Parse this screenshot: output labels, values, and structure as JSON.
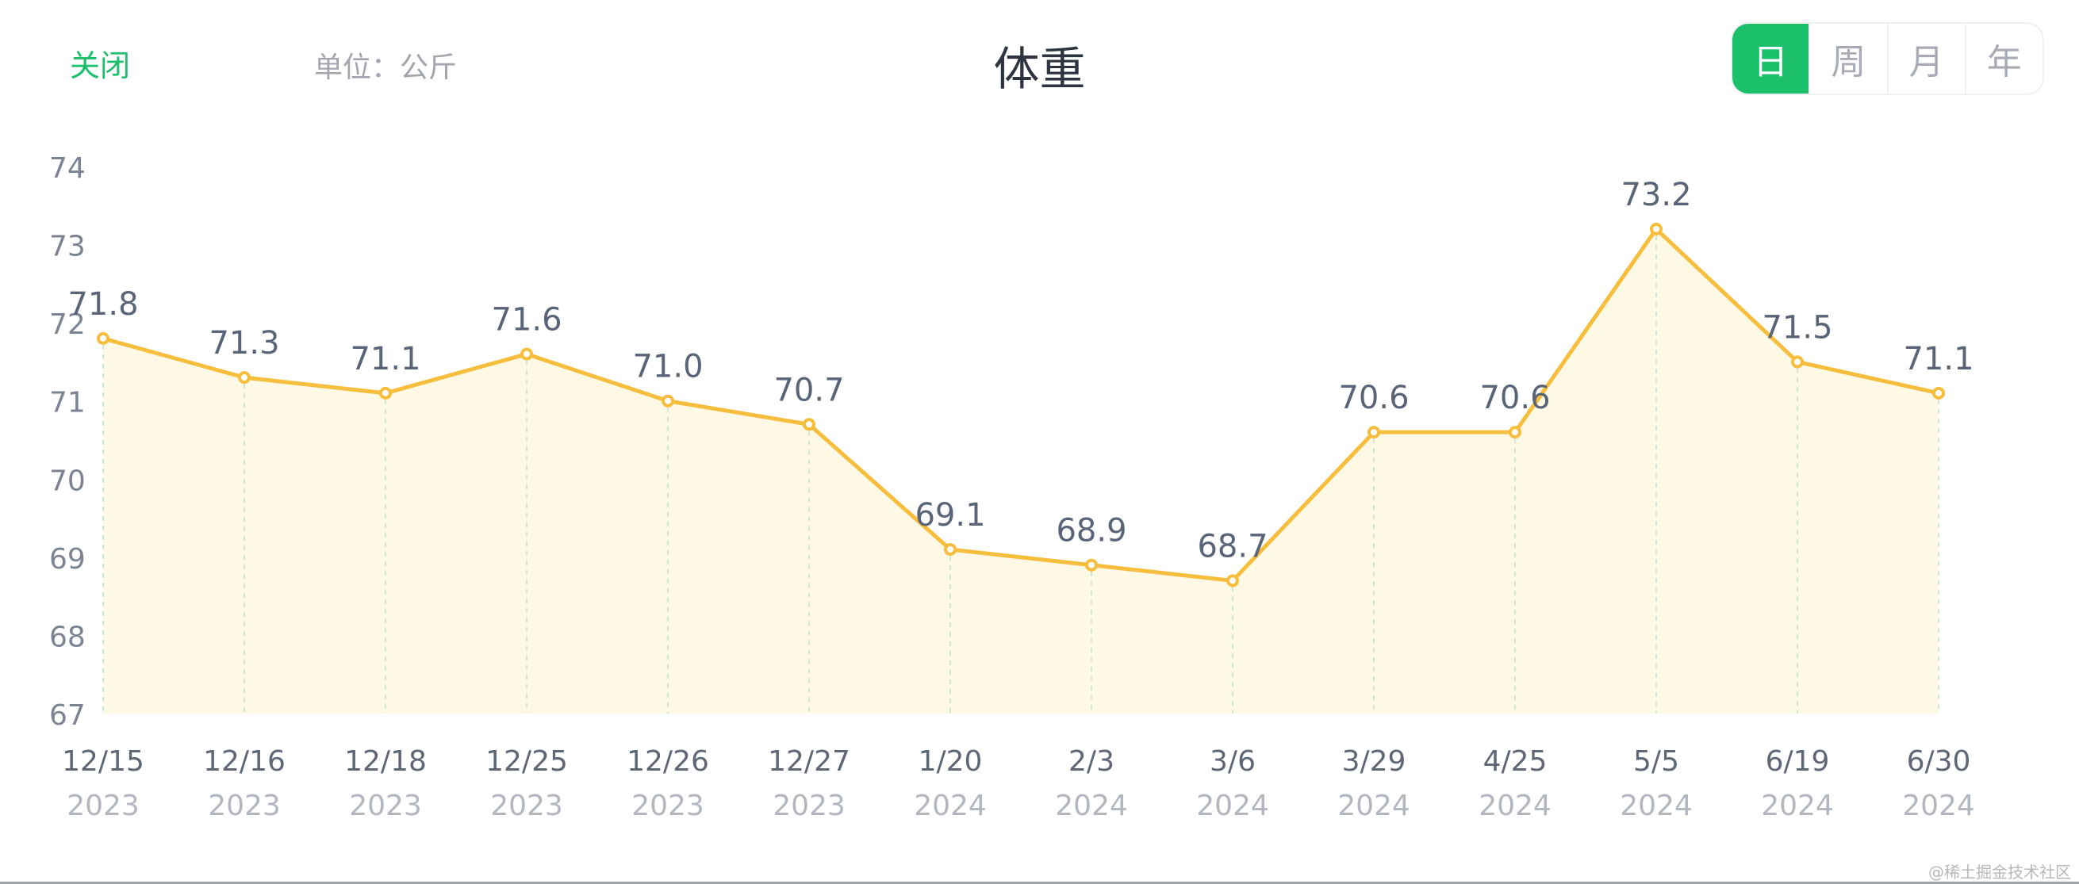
{
  "header": {
    "close_label": "关闭",
    "unit_label": "单位：公斤",
    "title": "体重"
  },
  "period_tabs": [
    {
      "label": "日",
      "active": true
    },
    {
      "label": "周",
      "active": false
    },
    {
      "label": "月",
      "active": false
    },
    {
      "label": "年",
      "active": false
    }
  ],
  "colors": {
    "accent_green": "#1cbf6a",
    "line": "#f7bd3c",
    "area_fill": "#fef9e4",
    "point_fill": "#ffffff",
    "grid_dash": "#cfe8d6"
  },
  "watermark": "@稀土掘金技术社区",
  "chart_data": {
    "type": "area",
    "categories": [
      "12/15",
      "12/16",
      "12/18",
      "12/25",
      "12/26",
      "12/27",
      "1/20",
      "2/3",
      "3/6",
      "3/29",
      "4/25",
      "5/5",
      "6/19",
      "6/30"
    ],
    "years": [
      "2023",
      "2023",
      "2023",
      "2023",
      "2023",
      "2023",
      "2024",
      "2024",
      "2024",
      "2024",
      "2024",
      "2024",
      "2024",
      "2024"
    ],
    "values": [
      71.8,
      71.3,
      71.1,
      71.6,
      71.0,
      70.7,
      69.1,
      68.9,
      68.7,
      70.6,
      70.6,
      73.2,
      71.5,
      71.1
    ],
    "value_labels": [
      "71.8",
      "71.3",
      "71.1",
      "71.6",
      "71.0",
      "70.7",
      "69.1",
      "68.9",
      "68.7",
      "70.6",
      "70.6",
      "73.2",
      "71.5",
      "71.1"
    ],
    "y_ticks": [
      67,
      68,
      69,
      70,
      71,
      72,
      73,
      74
    ],
    "ylim": [
      67,
      74
    ],
    "grid": "vertical dashed",
    "legend": "none"
  }
}
